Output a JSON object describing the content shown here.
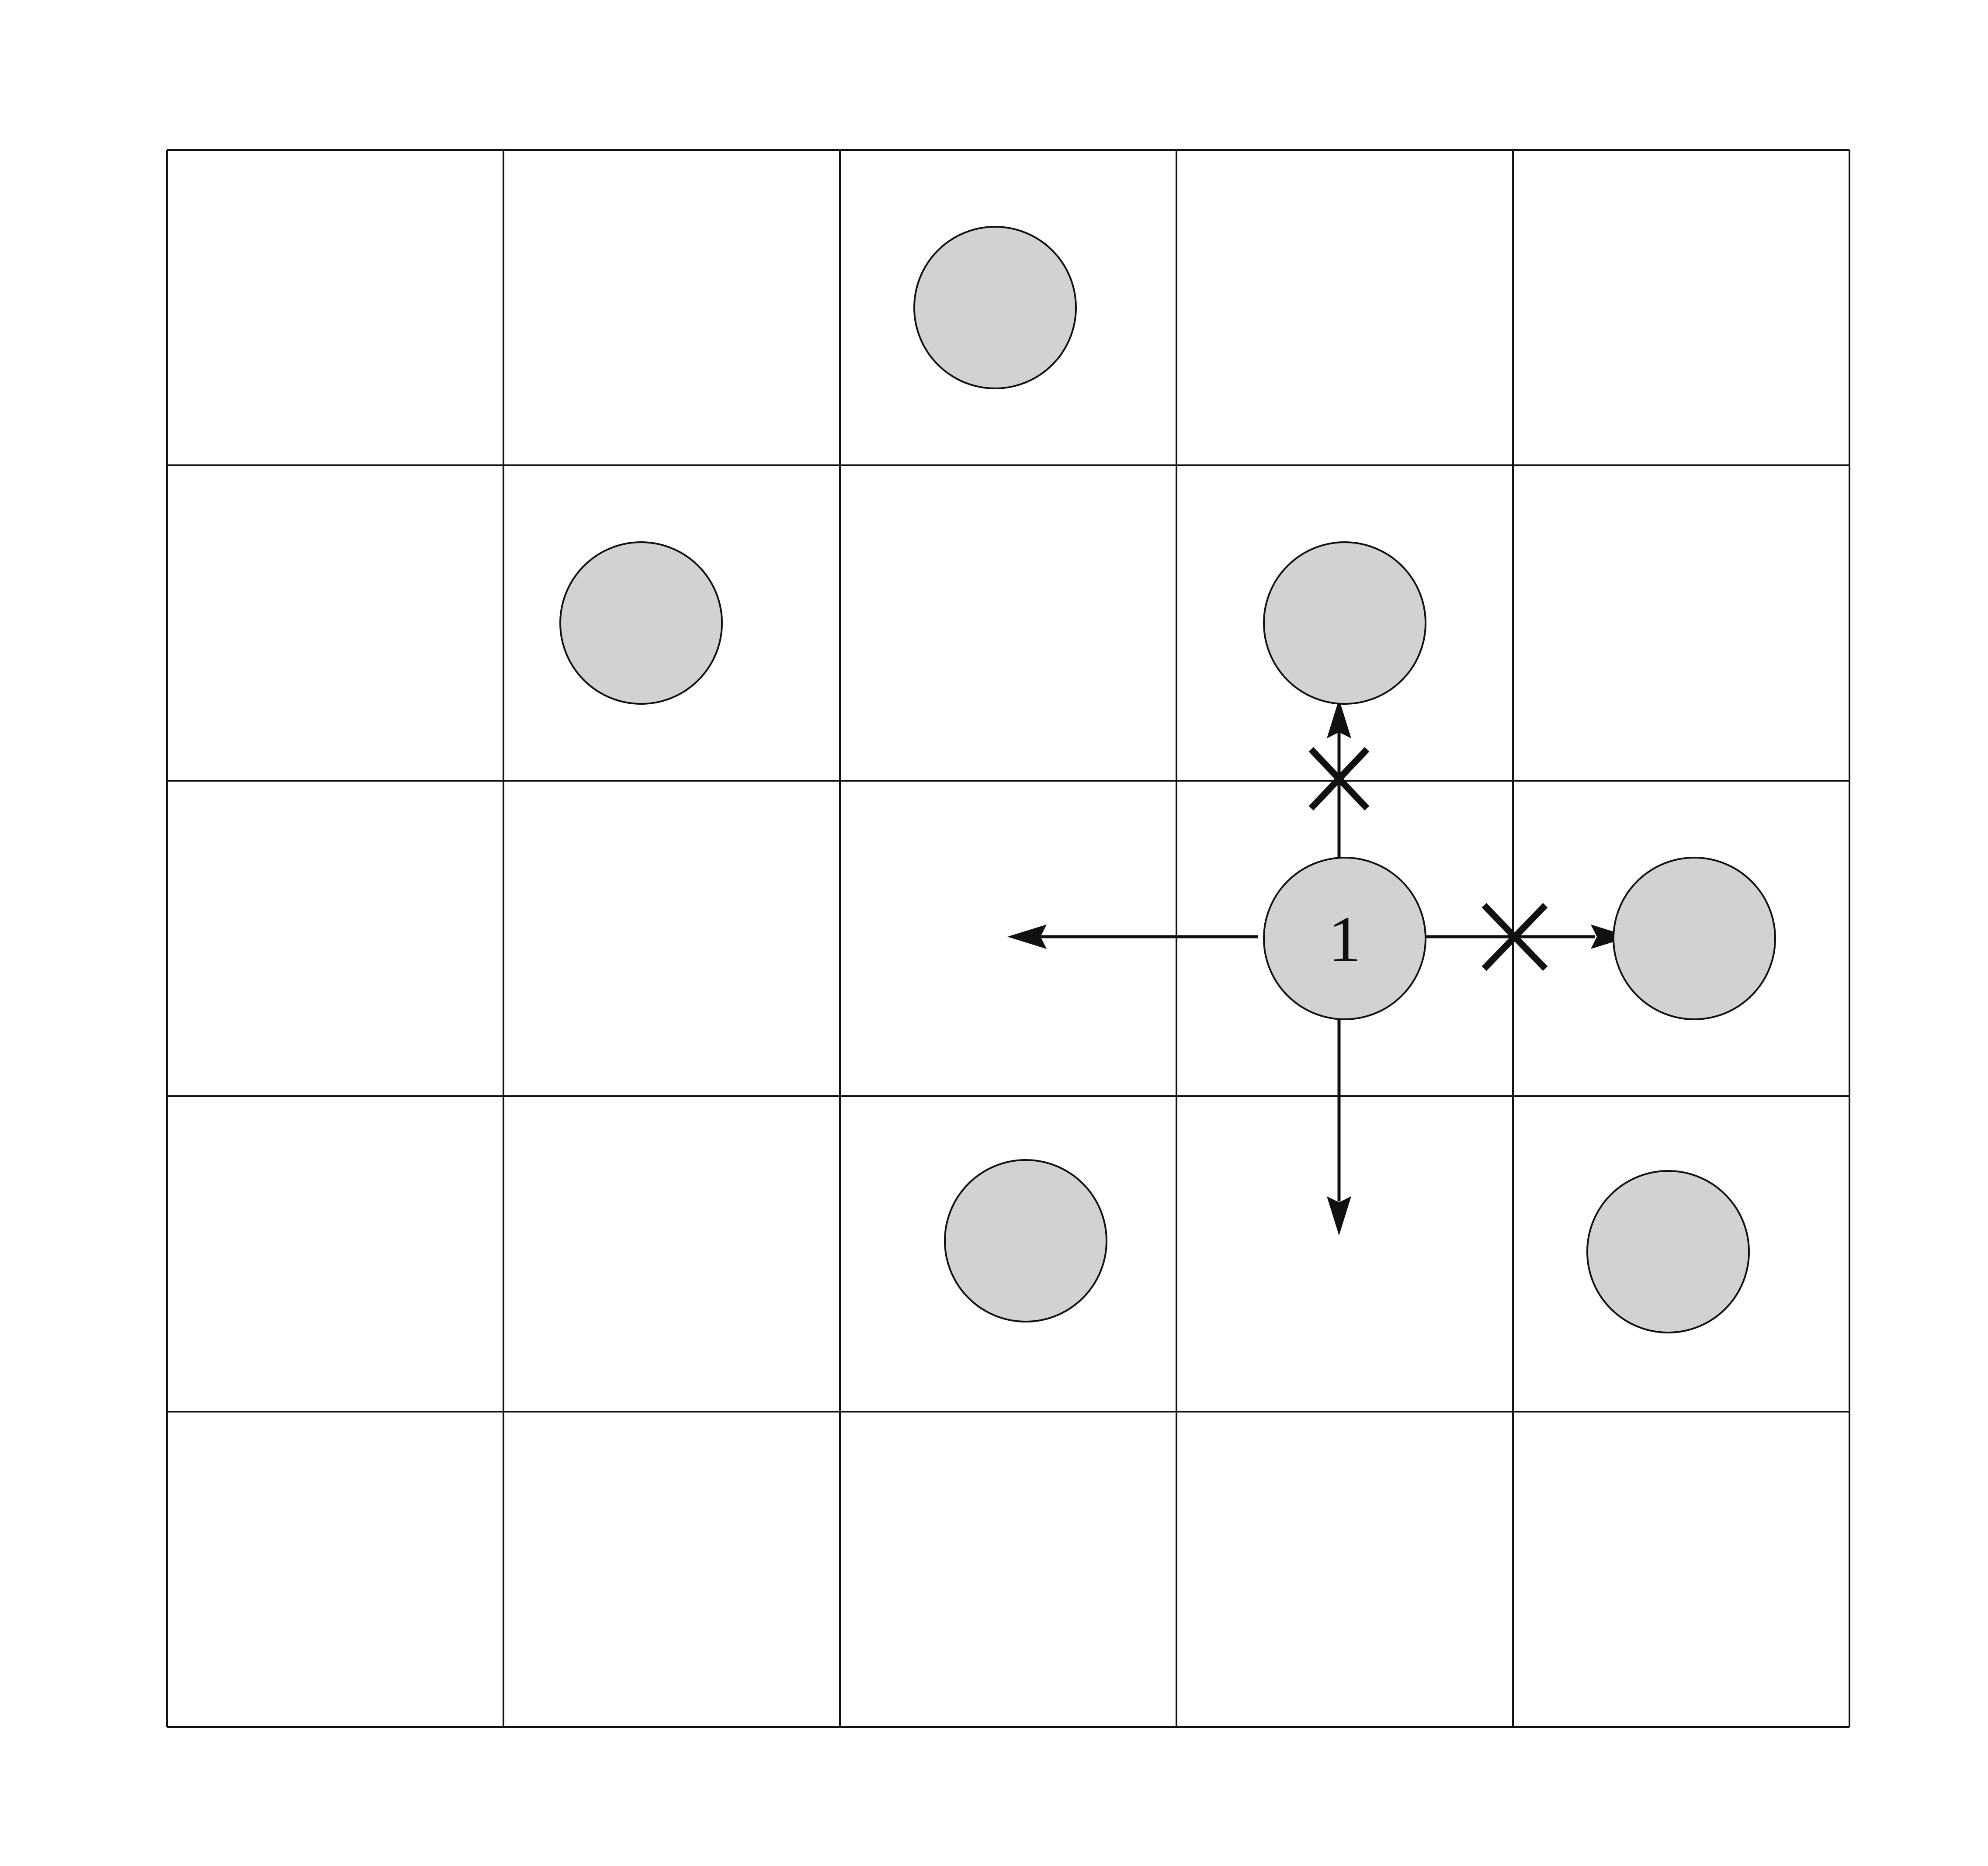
{
  "board": {
    "rows": 5,
    "columns": 5,
    "tokens": [
      {
        "row": 0,
        "col": 2,
        "label": ""
      },
      {
        "row": 1,
        "col": 1,
        "label": ""
      },
      {
        "row": 1,
        "col": 3,
        "label": ""
      },
      {
        "row": 2,
        "col": 3,
        "label": "1"
      },
      {
        "row": 2,
        "col": 4,
        "label": ""
      },
      {
        "row": 3,
        "col": 2,
        "label": ""
      },
      {
        "row": 3,
        "col": 4,
        "label": ""
      }
    ],
    "moves": [
      {
        "direction": "up",
        "blocked": true
      },
      {
        "direction": "right",
        "blocked": true
      },
      {
        "direction": "left",
        "blocked": false
      },
      {
        "direction": "down",
        "blocked": false
      }
    ]
  },
  "colors": {
    "token_fill": "#d1d2d4",
    "line": "#111111",
    "background": "#ffffff"
  }
}
